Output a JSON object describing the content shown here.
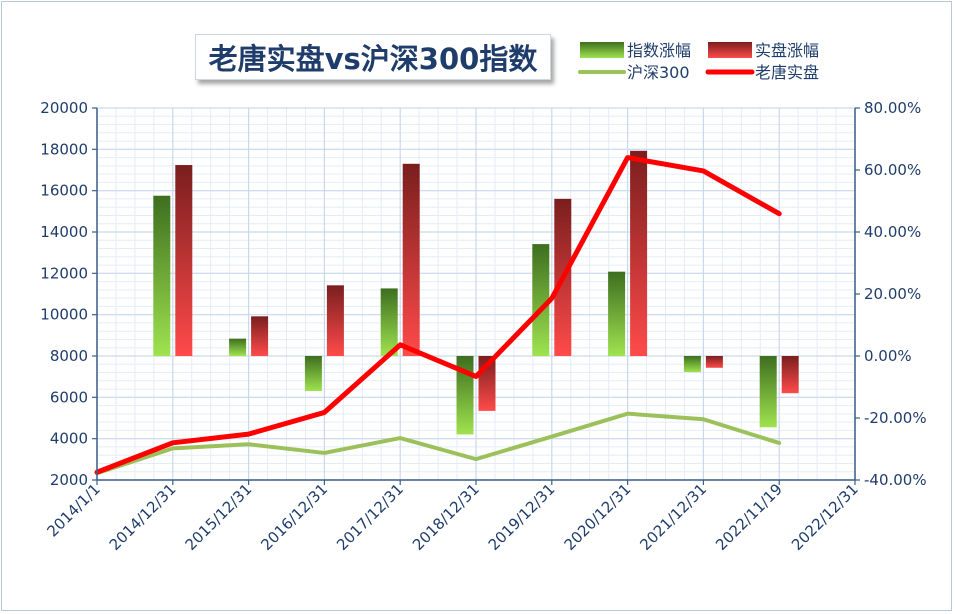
{
  "chart_data": {
    "type": "bar+line",
    "title": "老唐实盘vs沪深300指数",
    "categories": [
      "2014/1/1",
      "2014/12/31",
      "2015/12/31",
      "2016/12/31",
      "2017/12/31",
      "2018/12/31",
      "2019/12/31",
      "2020/12/31",
      "2021/12/31",
      "2022/11/19",
      "2022/12/31"
    ],
    "left_axis": {
      "min": 2000,
      "max": 20000,
      "ticks": [
        "2000",
        "4000",
        "6000",
        "8000",
        "10000",
        "12000",
        "14000",
        "16000",
        "18000",
        "20000"
      ]
    },
    "right_axis": {
      "min": -40,
      "max": 80,
      "ticks": [
        "-40.00%",
        "-20.00%",
        "0.00%",
        "20.00%",
        "40.00%",
        "60.00%",
        "80.00%"
      ]
    },
    "series": [
      {
        "name": "指数涨幅",
        "kind": "bar",
        "axis": "right",
        "gradient": [
          "#3d6e1f",
          "#9fe34f"
        ],
        "values": [
          null,
          51.7,
          5.6,
          -11.3,
          21.8,
          -25.3,
          36.1,
          27.2,
          -5.2,
          -23.0,
          null
        ]
      },
      {
        "name": "实盘涨幅",
        "kind": "bar",
        "axis": "right",
        "gradient": [
          "#7a1e1e",
          "#ff4a4a"
        ],
        "values": [
          null,
          61.6,
          12.8,
          22.8,
          62.0,
          -17.7,
          50.7,
          66.2,
          -3.8,
          -12.0,
          null
        ]
      },
      {
        "name": "沪深300",
        "kind": "line",
        "axis": "left",
        "color": "#9cc05a",
        "values": [
          2330,
          3530,
          3730,
          3310,
          4030,
          3010,
          4100,
          5210,
          4940,
          3790,
          null
        ]
      },
      {
        "name": "老唐实盘",
        "kind": "line",
        "axis": "right",
        "color": "#ff0000",
        "values": [
          -37.5,
          -28.0,
          -25.2,
          -18.2,
          3.6,
          -6.6,
          18.6,
          64.0,
          59.7,
          45.9,
          null
        ]
      }
    ],
    "grid": true,
    "legend_position": "top-right"
  }
}
